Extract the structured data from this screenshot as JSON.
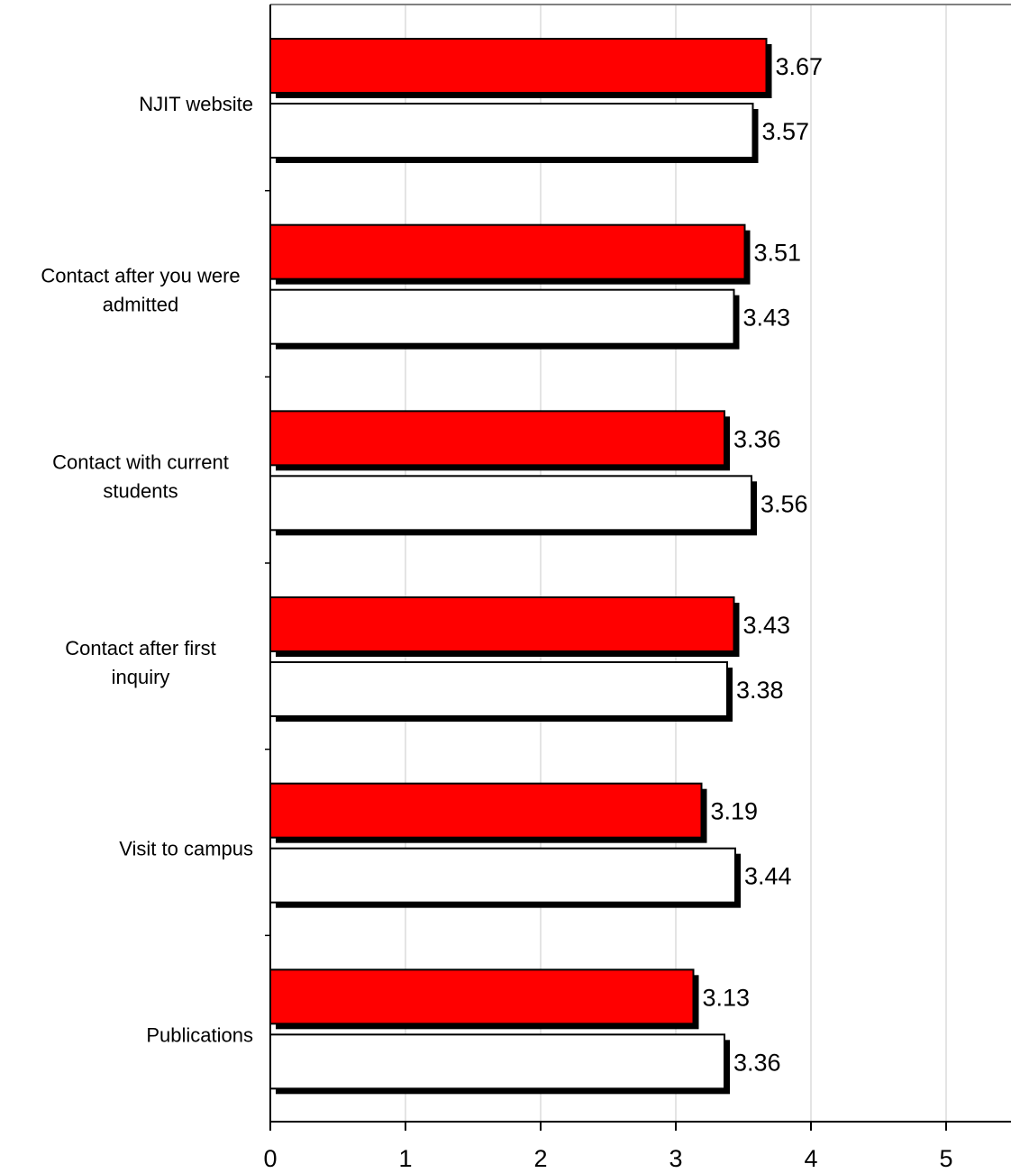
{
  "chart_data": {
    "type": "bar",
    "orientation": "horizontal",
    "categories": [
      "NJIT website",
      "Contact after you were admitted",
      "Contact with current students",
      "Contact after first inquiry",
      "Visit to campus",
      "Publications"
    ],
    "series": [
      {
        "color": "#ff0000",
        "values": [
          3.67,
          3.51,
          3.36,
          3.43,
          3.19,
          3.13
        ]
      },
      {
        "color": "#ffffff",
        "values": [
          3.57,
          3.43,
          3.56,
          3.38,
          3.44,
          3.36
        ]
      }
    ],
    "data_labels": [
      [
        "3.67",
        "3.51",
        "3.36",
        "3.43",
        "3.19",
        "3.13"
      ],
      [
        "3.57",
        "3.43",
        "3.56",
        "3.38",
        "3.44",
        "3.36"
      ]
    ],
    "xlim": [
      0,
      5.5
    ],
    "xticks": [
      "0",
      "1",
      "2",
      "3",
      "4",
      "5"
    ],
    "grid": true,
    "legend": "none"
  }
}
